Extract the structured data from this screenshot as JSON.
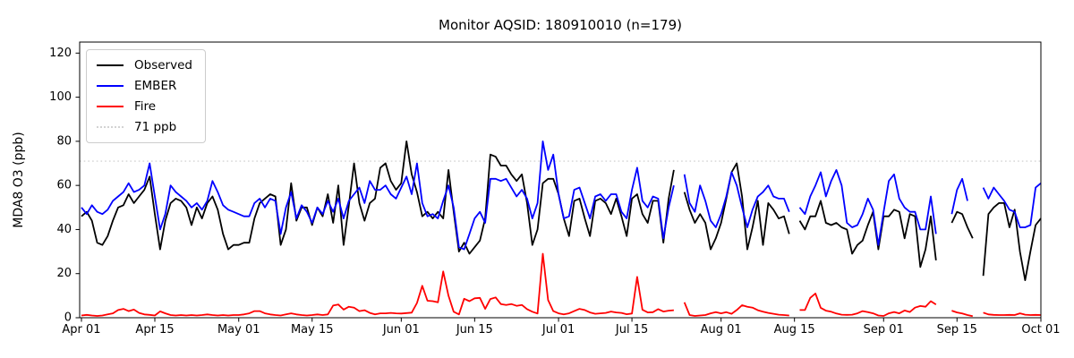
{
  "title": "Monitor AQSID: 180910010 (n=179)",
  "y_axis": {
    "label": "MDA8 O3 (ppb)",
    "ticks": [
      0,
      20,
      40,
      60,
      80,
      100,
      120
    ],
    "lim": [
      0,
      125
    ]
  },
  "x_axis": {
    "tick_days": [
      0,
      14,
      30,
      44,
      61,
      75,
      91,
      105,
      122,
      136,
      153,
      167,
      183
    ],
    "tick_labels": [
      "Apr 01",
      "Apr 15",
      "May 01",
      "May 15",
      "Jun 01",
      "Jun 15",
      "Jul 01",
      "Jul 15",
      "Aug 01",
      "Aug 15",
      "Sep 01",
      "Sep 15",
      "Oct 01"
    ]
  },
  "legend": {
    "items": [
      {
        "label": "Observed",
        "color": "#000000",
        "style": "solid"
      },
      {
        "label": "EMBER",
        "color": "#0000ff",
        "style": "solid"
      },
      {
        "label": "Fire",
        "color": "#ff0000",
        "style": "solid"
      },
      {
        "label": "71 ppb",
        "color": "#d3d3d3",
        "style": "dotted"
      }
    ]
  },
  "threshold": {
    "value": 71,
    "label": "71 ppb",
    "color": "#d3d3d3"
  },
  "chart_data": {
    "type": "line",
    "title": "Monitor AQSID: 180910010 (n=179)",
    "xlabel": "",
    "ylabel": "MDA8 O3 (ppb)",
    "ylim": [
      0,
      125
    ],
    "grid": false,
    "legend_position": "upper left",
    "x_unit": "days since Apr 01 (daily values, Apr 01 - Oct 01)",
    "n_points": 184,
    "threshold_ppb": 71,
    "series": [
      {
        "name": "Observed",
        "color": "#000000",
        "values": [
          46,
          48,
          44,
          34,
          33,
          37,
          44,
          50,
          51,
          56,
          52,
          55,
          58,
          64,
          47,
          31,
          44,
          52,
          54,
          53,
          50,
          42,
          50,
          45,
          52,
          55,
          49,
          38,
          31,
          33,
          33,
          34,
          34,
          45,
          52,
          54,
          56,
          55,
          33,
          40,
          61,
          44,
          50,
          50,
          42,
          50,
          46,
          56,
          43,
          60,
          33,
          51,
          70,
          52,
          44,
          52,
          54,
          68,
          70,
          62,
          58,
          61,
          80,
          65,
          57,
          46,
          48,
          45,
          48,
          45,
          67,
          48,
          30,
          34,
          29,
          32,
          35,
          45,
          74,
          73,
          69,
          69,
          65,
          62,
          65,
          52,
          33,
          40,
          61,
          63,
          63,
          56,
          45,
          37,
          53,
          54,
          45,
          37,
          53,
          54,
          52,
          47,
          54,
          46,
          37,
          54,
          56,
          47,
          43,
          53,
          53,
          34,
          54,
          67,
          null,
          57,
          49,
          43,
          47,
          43,
          31,
          36,
          43,
          54,
          66,
          70,
          55,
          31,
          41,
          53,
          33,
          52,
          49,
          45,
          46,
          38,
          null,
          44,
          40,
          46,
          46,
          53,
          43,
          42,
          43,
          41,
          40,
          29,
          33,
          35,
          42,
          48,
          31,
          46,
          46,
          49,
          48,
          36,
          47,
          46,
          23,
          31,
          46,
          26,
          null,
          null,
          43,
          48,
          47,
          41,
          36,
          null,
          19,
          47,
          50,
          52,
          52,
          41,
          49,
          30,
          17,
          30,
          42,
          45
        ]
      },
      {
        "name": "EMBER",
        "color": "#0000ff",
        "values": [
          50,
          47,
          51,
          48,
          47,
          49,
          53,
          55,
          57,
          61,
          57,
          58,
          60,
          70,
          55,
          40,
          47,
          60,
          57,
          55,
          53,
          50,
          52,
          49,
          53,
          62,
          57,
          51,
          49,
          48,
          47,
          46,
          46,
          52,
          54,
          50,
          54,
          53,
          38,
          50,
          57,
          45,
          51,
          48,
          43,
          50,
          47,
          53,
          48,
          54,
          45,
          53,
          56,
          59,
          52,
          62,
          58,
          58,
          60,
          56,
          54,
          59,
          64,
          56,
          70,
          52,
          46,
          47,
          45,
          53,
          60,
          50,
          32,
          31,
          38,
          45,
          48,
          43,
          63,
          63,
          62,
          63,
          59,
          55,
          58,
          54,
          45,
          52,
          80,
          67,
          74,
          56,
          45,
          46,
          58,
          59,
          52,
          45,
          55,
          56,
          53,
          56,
          56,
          48,
          45,
          58,
          68,
          53,
          50,
          55,
          54,
          36,
          50,
          60,
          null,
          65,
          52,
          48,
          60,
          53,
          44,
          41,
          47,
          55,
          66,
          60,
          50,
          41,
          49,
          55,
          57,
          60,
          55,
          54,
          54,
          48,
          null,
          50,
          47,
          55,
          60,
          66,
          55,
          62,
          67,
          60,
          43,
          41,
          42,
          47,
          54,
          49,
          33,
          48,
          62,
          65,
          54,
          50,
          48,
          48,
          40,
          40,
          55,
          38,
          null,
          null,
          47,
          58,
          63,
          53,
          null,
          null,
          59,
          54,
          59,
          56,
          53,
          49,
          48,
          41,
          41,
          42,
          59,
          61
        ]
      },
      {
        "name": "Fire",
        "color": "#ff0000",
        "values": [
          1,
          1.3,
          1,
          0.8,
          1,
          1.5,
          2,
          3.5,
          4,
          3,
          3.7,
          2.2,
          1.5,
          1.3,
          1,
          2.9,
          2,
          1.2,
          1,
          1.2,
          1,
          1.2,
          1,
          1.2,
          1.5,
          1.2,
          1,
          1.2,
          1,
          1.2,
          1.2,
          1.5,
          2,
          3,
          3,
          2,
          1.5,
          1.2,
          1,
          1.5,
          2,
          1.5,
          1.2,
          1,
          1.2,
          1.5,
          1.2,
          1.5,
          5.5,
          6,
          3.7,
          5,
          4.6,
          3,
          3.4,
          2.2,
          1.5,
          2,
          2,
          2.2,
          2,
          1.9,
          2.1,
          2.3,
          6.7,
          14.5,
          7.7,
          7.5,
          7,
          21,
          10,
          2.7,
          1.5,
          8.6,
          7.5,
          8.8,
          9,
          4,
          8.5,
          9.2,
          6.2,
          5.8,
          6.2,
          5.4,
          5.8,
          3.9,
          2.7,
          1.9,
          29,
          8,
          3,
          2,
          1.5,
          2,
          3,
          4,
          3.5,
          2.4,
          1.8,
          2,
          2.2,
          2.8,
          2.4,
          2.2,
          1.6,
          1.9,
          18.5,
          3.6,
          2.4,
          2.5,
          3.9,
          2.8,
          3.2,
          3.4,
          null,
          7,
          1.2,
          0.8,
          1,
          1.2,
          2,
          2.5,
          2,
          2.5,
          1.8,
          3.5,
          5.7,
          5,
          4.6,
          3.4,
          2.7,
          2.2,
          1.8,
          1.4,
          1.2,
          1,
          null,
          3.5,
          3.5,
          9,
          11,
          4.5,
          3.2,
          2.7,
          1.9,
          1.4,
          1.3,
          1.4,
          2,
          3,
          2.5,
          2,
          1,
          0.8,
          2,
          2.6,
          2,
          3.3,
          2.6,
          4.6,
          5.3,
          5,
          7.5,
          6,
          null,
          null,
          3.2,
          2.4,
          1.9,
          1.2,
          0.7,
          null,
          2.3,
          1.5,
          1.3,
          1.2,
          1.2,
          1.3,
          1.2,
          2,
          1.4,
          1.2,
          1.3,
          1.2
        ]
      }
    ]
  }
}
